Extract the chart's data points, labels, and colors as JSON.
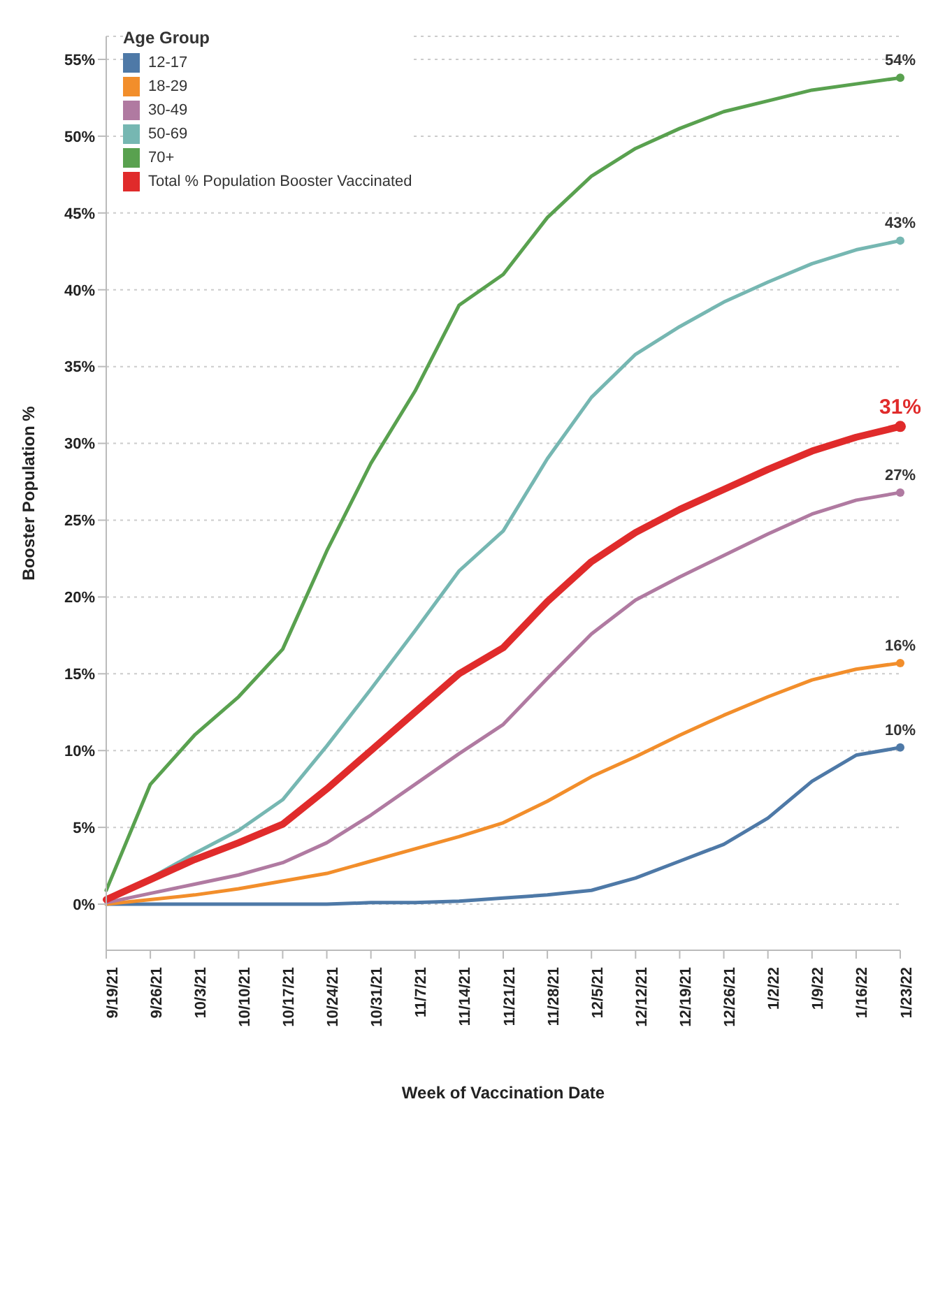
{
  "chart_data": {
    "type": "line",
    "xlabel": "Week of Vaccination Date",
    "ylabel": "Booster Population %",
    "legend_title": "Age Group",
    "legend": "top left",
    "grid": "y",
    "marker": "none",
    "line_style": "solid",
    "categories": [
      "9/19/21",
      "9/26/21",
      "10/3/21",
      "10/10/21",
      "10/17/21",
      "10/24/21",
      "10/31/21",
      "11/7/21",
      "11/14/21",
      "11/21/21",
      "11/28/21",
      "12/5/21",
      "12/12/21",
      "12/19/21",
      "12/26/21",
      "1/2/22",
      "1/9/22",
      "1/16/22",
      "1/23/22"
    ],
    "ylim": [
      -3,
      56.5
    ],
    "yticks": [
      {
        "value": 0,
        "label": "0%"
      },
      {
        "value": 5,
        "label": "5%"
      },
      {
        "value": 10,
        "label": "10%"
      },
      {
        "value": 15,
        "label": "15%"
      },
      {
        "value": 20,
        "label": "20%"
      },
      {
        "value": 25,
        "label": "25%"
      },
      {
        "value": 30,
        "label": "30%"
      },
      {
        "value": 35,
        "label": "35%"
      },
      {
        "value": 40,
        "label": "40%"
      },
      {
        "value": 45,
        "label": "45%"
      },
      {
        "value": 50,
        "label": "50%"
      },
      {
        "value": 55,
        "label": "55%"
      }
    ],
    "series": [
      {
        "name": "12-17",
        "color": "#4e79a7",
        "values": [
          0,
          0,
          0,
          0,
          0,
          0,
          0.1,
          0.1,
          0.2,
          0.4,
          0.6,
          0.9,
          1.7,
          2.8,
          3.9,
          5.6,
          8,
          9.7,
          10.2
        ],
        "value_labels": [
          null,
          null,
          null,
          null,
          null,
          null,
          null,
          null,
          null,
          null,
          null,
          null,
          null,
          null,
          null,
          null,
          null,
          null,
          "10%"
        ]
      },
      {
        "name": "18-29",
        "color": "#f28e2b",
        "values": [
          0,
          0.3,
          0.6,
          1,
          1.5,
          2,
          2.8,
          3.6,
          4.4,
          5.3,
          6.7,
          8.3,
          9.6,
          11,
          12.3,
          13.5,
          14.6,
          15.3,
          15.7
        ],
        "value_labels": [
          null,
          null,
          null,
          null,
          null,
          null,
          null,
          null,
          null,
          null,
          null,
          null,
          null,
          null,
          null,
          null,
          null,
          null,
          "16%"
        ]
      },
      {
        "name": "30-49",
        "color": "#b07aa1",
        "values": [
          0.1,
          0.7,
          1.3,
          1.9,
          2.7,
          4,
          5.8,
          7.8,
          9.8,
          11.7,
          14.7,
          17.6,
          19.8,
          21.3,
          22.7,
          24.1,
          25.4,
          26.3,
          26.8
        ],
        "value_labels": [
          null,
          null,
          null,
          null,
          null,
          null,
          null,
          null,
          null,
          null,
          null,
          null,
          null,
          null,
          null,
          null,
          null,
          null,
          "27%"
        ]
      },
      {
        "name": "50-69",
        "color": "#76b7b2",
        "values": [
          0.3,
          1.7,
          3.3,
          4.8,
          6.8,
          10.3,
          14,
          17.8,
          21.7,
          24.3,
          29,
          33,
          35.8,
          37.6,
          39.2,
          40.5,
          41.7,
          42.6,
          43.2
        ],
        "value_labels": [
          null,
          null,
          null,
          null,
          null,
          null,
          null,
          null,
          null,
          null,
          null,
          null,
          null,
          null,
          null,
          null,
          null,
          null,
          "43%"
        ]
      },
      {
        "name": "70+",
        "color": "#59a14f",
        "values": [
          0.9,
          7.8,
          11,
          13.5,
          16.6,
          23,
          28.7,
          33.4,
          39,
          41,
          44.7,
          47.4,
          49.2,
          50.5,
          51.6,
          52.3,
          53,
          53.4,
          53.8
        ],
        "value_labels": [
          null,
          null,
          null,
          null,
          null,
          null,
          null,
          null,
          null,
          null,
          null,
          null,
          null,
          null,
          null,
          null,
          null,
          null,
          "54%"
        ]
      },
      {
        "name": "Total % Population Booster Vaccinated",
        "color": "#e02b2b",
        "values": [
          0.3,
          1.6,
          2.9,
          4,
          5.2,
          7.5,
          10,
          12.5,
          15,
          16.7,
          19.7,
          22.3,
          24.2,
          25.7,
          27,
          28.3,
          29.5,
          30.4,
          31.1
        ],
        "value_labels": [
          null,
          null,
          null,
          null,
          null,
          null,
          null,
          null,
          null,
          null,
          null,
          null,
          null,
          null,
          null,
          null,
          null,
          null,
          "31%"
        ]
      }
    ]
  }
}
